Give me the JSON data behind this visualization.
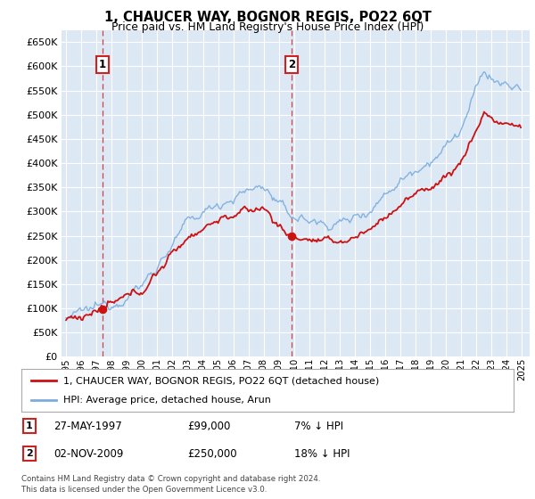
{
  "title": "1, CHAUCER WAY, BOGNOR REGIS, PO22 6QT",
  "subtitle": "Price paid vs. HM Land Registry's House Price Index (HPI)",
  "legend_line1": "1, CHAUCER WAY, BOGNOR REGIS, PO22 6QT (detached house)",
  "legend_line2": "HPI: Average price, detached house, Arun",
  "footnote1": "Contains HM Land Registry data © Crown copyright and database right 2024.",
  "footnote2": "This data is licensed under the Open Government Licence v3.0.",
  "annotation1": {
    "label": "1",
    "date_str": "27-MAY-1997",
    "price_str": "£99,000",
    "hpi_str": "7% ↓ HPI",
    "year": 1997.38
  },
  "annotation2": {
    "label": "2",
    "date_str": "02-NOV-2009",
    "price_str": "£250,000",
    "hpi_str": "18% ↓ HPI",
    "year": 2009.83
  },
  "sale1_year": 1997.38,
  "sale1_price": 99000,
  "sale2_year": 2009.83,
  "sale2_price": 250000,
  "hpi_color": "#7aacdc",
  "price_color": "#cc1111",
  "background_color": "#dde8f5",
  "grid_color": "#ffffff",
  "ylim": [
    0,
    675000
  ],
  "yticks": [
    0,
    50000,
    100000,
    150000,
    200000,
    250000,
    300000,
    350000,
    400000,
    450000,
    500000,
    550000,
    600000,
    650000
  ],
  "xlim_start": 1994.7,
  "xlim_end": 2025.5
}
